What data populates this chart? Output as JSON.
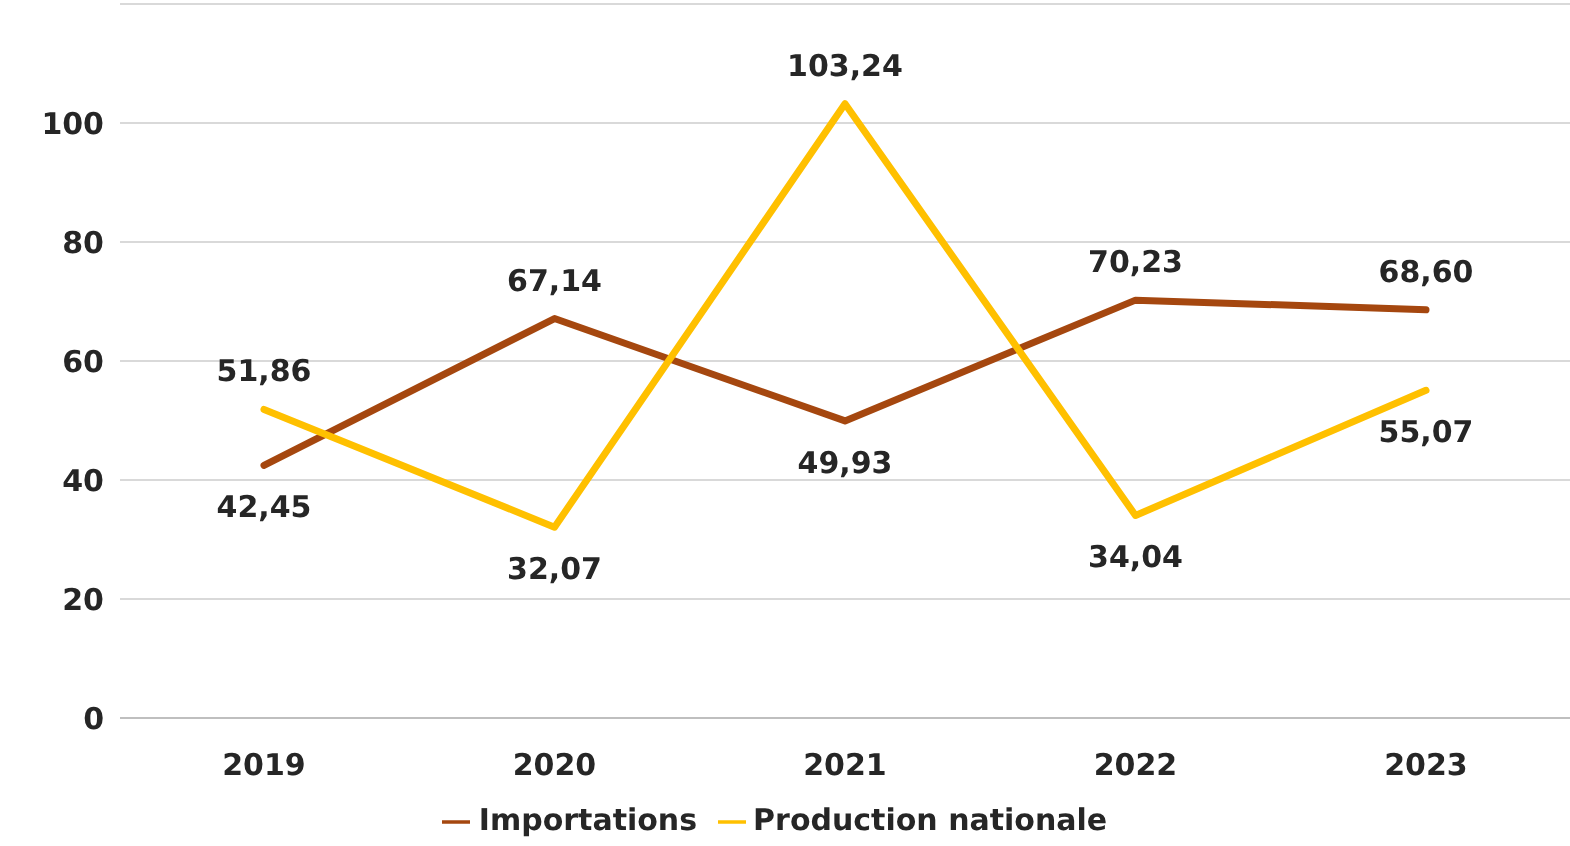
{
  "chart_data": {
    "type": "line",
    "categories": [
      "2019",
      "2020",
      "2021",
      "2022",
      "2023"
    ],
    "series": [
      {
        "name": "Importations",
        "color": "#a5470f",
        "values": [
          42.45,
          67.14,
          49.93,
          70.23,
          68.6
        ],
        "value_labels": [
          "42,45",
          "67,14",
          "49,93",
          "70,23",
          "68,60"
        ]
      },
      {
        "name": "Production nationale",
        "color": "#ffc000",
        "values": [
          51.86,
          32.07,
          103.24,
          34.04,
          55.07
        ],
        "value_labels": [
          "51,86",
          "32,07",
          "103,24",
          "34,04",
          "55,07"
        ]
      }
    ],
    "ylim": [
      0,
      120
    ],
    "yticks": [
      0,
      20,
      40,
      60,
      80,
      100
    ],
    "grid": "y",
    "legend": "bottom",
    "marker": "none",
    "line_style": "solid"
  }
}
